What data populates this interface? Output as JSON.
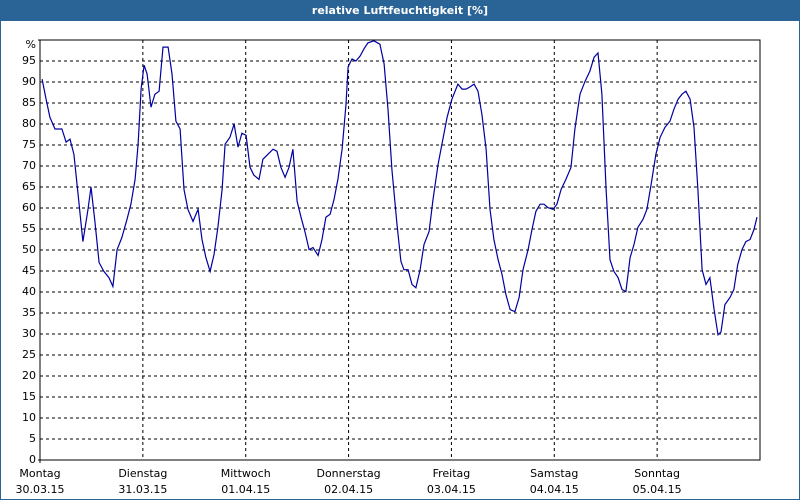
{
  "chart_data": {
    "type": "line",
    "title": "relative Luftfeuchtigkeit [%]",
    "xlim": [
      0,
      168
    ],
    "xticks": [
      {
        "value": 0,
        "label": "Montag",
        "date": "30.03.15"
      },
      {
        "value": 24,
        "label": "Dienstag",
        "date": "31.03.15"
      },
      {
        "value": 48,
        "label": "Mittwoch",
        "date": "01.04.15"
      },
      {
        "value": 72,
        "label": "Donnerstag",
        "date": "02.04.15"
      },
      {
        "value": 96,
        "label": "Freitag",
        "date": "03.04.15"
      },
      {
        "value": 120,
        "label": "Samstag",
        "date": "04.04.15"
      },
      {
        "value": 144,
        "label": "Sonntag",
        "date": "05.04.15"
      }
    ],
    "ylim": [
      0,
      100
    ],
    "yticks": [
      0,
      5,
      10,
      15,
      20,
      25,
      30,
      35,
      40,
      45,
      50,
      55,
      60,
      65,
      70,
      75,
      80,
      85,
      90,
      95,
      {
        "value": 100,
        "label": "%"
      }
    ],
    "grid": true,
    "series": [
      {
        "color": "#0000a0",
        "x": [
          0.5,
          1.4,
          2.3,
          3.5,
          5.1,
          6.1,
          7.0,
          7.9,
          8.9,
          10.0,
          11.2,
          11.9,
          12.8,
          13.8,
          14.9,
          16.1,
          17.0,
          18.0,
          19.1,
          20.3,
          21.2,
          22.2,
          22.9,
          23.6,
          24.3,
          25.0,
          25.9,
          26.8,
          27.8,
          28.7,
          29.9,
          30.8,
          31.7,
          32.7,
          33.6,
          34.5,
          35.7,
          36.9,
          37.8,
          38.7,
          39.7,
          40.6,
          41.5,
          42.5,
          43.2,
          44.3,
          45.3,
          46.2,
          47.1,
          48.1,
          49.0,
          49.9,
          51.1,
          52.0,
          53.2,
          54.4,
          55.3,
          56.2,
          57.2,
          58.1,
          59.0,
          60.0,
          60.9,
          61.8,
          62.8,
          63.7,
          64.9,
          65.8,
          66.7,
          67.7,
          68.6,
          69.5,
          70.5,
          71.4,
          71.9,
          72.8,
          73.7,
          74.7,
          75.6,
          76.5,
          77.9,
          79.3,
          80.3,
          81.2,
          82.1,
          83.3,
          84.2,
          84.9,
          85.9,
          86.8,
          87.7,
          88.7,
          89.6,
          90.8,
          91.7,
          92.9,
          94.0,
          95.0,
          96.1,
          97.5,
          98.5,
          99.4,
          100.3,
          101.3,
          102.2,
          103.1,
          104.1,
          105.0,
          105.9,
          106.9,
          107.8,
          108.7,
          109.7,
          110.8,
          111.8,
          112.7,
          113.9,
          114.8,
          115.7,
          116.7,
          117.6,
          118.5,
          119.7,
          120.6,
          121.6,
          122.7,
          123.9,
          124.8,
          126.0,
          127.2,
          128.3,
          129.3,
          130.2,
          131.1,
          132.1,
          133.0,
          133.9,
          134.9,
          135.8,
          136.7,
          137.7,
          138.6,
          139.5,
          140.7,
          141.6,
          142.6,
          143.7,
          144.7,
          145.8,
          147.0,
          147.9,
          148.9,
          149.8,
          150.7,
          151.7,
          152.6,
          153.5,
          154.5,
          155.4,
          156.3,
          157.3,
          158.2,
          158.9,
          159.8,
          161.0,
          161.9,
          162.8,
          163.8,
          164.7,
          165.7,
          166.6,
          167.3
        ],
        "values": [
          90.7,
          86,
          81.6,
          78.8,
          78.8,
          75.7,
          76.4,
          72.8,
          63.2,
          52,
          59.7,
          65,
          56.8,
          47,
          44.9,
          43.4,
          41.3,
          50.1,
          53,
          57.3,
          60.9,
          66.8,
          75.2,
          88.3,
          94,
          91.9,
          84,
          87.1,
          87.8,
          98.3,
          98.3,
          91.9,
          80.7,
          78.8,
          64.4,
          59.7,
          56.8,
          59.7,
          52.5,
          48.2,
          44.9,
          48.9,
          55.4,
          64.4,
          75.2,
          76.8,
          80,
          74.5,
          77.8,
          77.3,
          69.7,
          67.8,
          66.8,
          71.6,
          72.8,
          74,
          73.5,
          69.7,
          67.3,
          69.7,
          74,
          61.6,
          57.8,
          54.4,
          50.1,
          50.6,
          48.7,
          52.5,
          57.8,
          58.5,
          62,
          66.8,
          74,
          84.7,
          93.6,
          95.5,
          95,
          96.2,
          97.9,
          99.3,
          99.8,
          99,
          94.3,
          83.5,
          69.2,
          56.1,
          47.3,
          45.3,
          45.3,
          41.8,
          41,
          45.3,
          51.3,
          54.4,
          62,
          70.4,
          76.4,
          81.6,
          85.9,
          89.5,
          88.3,
          88.3,
          88.8,
          89.5,
          87.8,
          82.3,
          74,
          59.7,
          52.5,
          47.7,
          44.2,
          39.4,
          35.8,
          35.3,
          38.7,
          45.3,
          50.1,
          54.9,
          59.2,
          60.9,
          60.9,
          60.1,
          59.7,
          60.9,
          64.4,
          66.8,
          69.7,
          78.8,
          87.1,
          90.2,
          92.6,
          95.9,
          96.9,
          87.1,
          64.4,
          47.7,
          44.9,
          43.4,
          40.6,
          40.1,
          48.2,
          51.3,
          55.4,
          57.3,
          59.7,
          65.6,
          72.8,
          76.8,
          79.2,
          80.7,
          83.5,
          85.9,
          87.1,
          87.8,
          85.9,
          79.2,
          64.4,
          45.3,
          41.8,
          43.4,
          35.8,
          29.8,
          30.5,
          37,
          38.7,
          40.6,
          46.5,
          50.1,
          52,
          52.5,
          54.9,
          57.8
        ]
      }
    ]
  }
}
